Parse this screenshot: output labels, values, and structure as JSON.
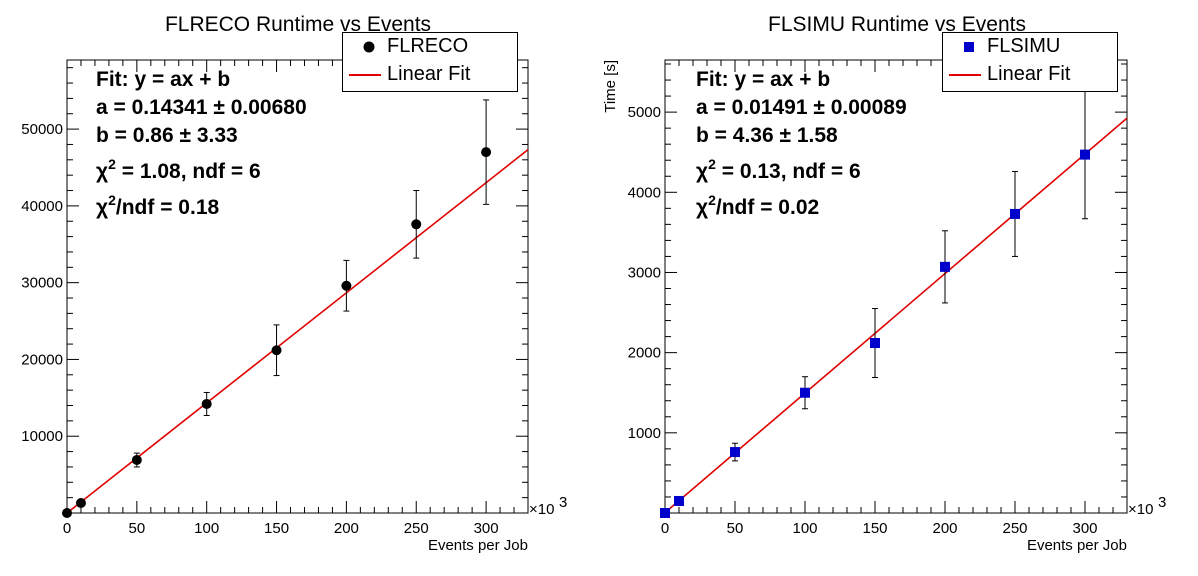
{
  "chart_data": [
    {
      "type": "scatter",
      "title": "FLRECO Runtime vs Events",
      "xlabel": "Events per Job",
      "ylabel": "",
      "x_multiplier": "×10",
      "x_multiplier_exp": "3",
      "xlim": [
        0,
        330000
      ],
      "ylim": [
        0,
        59000
      ],
      "xticks": [
        0,
        50000,
        100000,
        150000,
        200000,
        250000,
        300000
      ],
      "xtick_labels": [
        "0",
        "50",
        "100",
        "150",
        "200",
        "250",
        "300"
      ],
      "yticks": [
        10000,
        20000,
        30000,
        40000,
        50000
      ],
      "ytick_labels": [
        "10000",
        "20000",
        "30000",
        "40000",
        "50000"
      ],
      "series": [
        {
          "name": "FLRECO",
          "marker": "circle",
          "color": "#000000",
          "x": [
            0,
            10000,
            50000,
            100000,
            150000,
            200000,
            250000,
            300000
          ],
          "y": [
            0,
            1300,
            6900,
            14200,
            21200,
            29600,
            37600,
            47000
          ],
          "yerr": [
            0,
            250,
            900,
            1500,
            3300,
            3300,
            4400,
            6800
          ]
        }
      ],
      "fit": {
        "name": "Linear Fit",
        "color": "#e00000",
        "a": 0.14341,
        "b": 0.86,
        "x_range": [
          0,
          330000
        ]
      },
      "fit_text": {
        "line1": "Fit: y = ax + b",
        "a_line": "a = 0.14341 ± 0.00680",
        "b_line": "b = 0.86 ± 3.33",
        "chi2_prefix": "χ",
        "chi2_sup": "2",
        "chi2_rest": " = 1.08,  ndf = 6",
        "chi2ndf_prefix": "χ",
        "chi2ndf_sup": "2",
        "chi2ndf_rest": "/ndf = 0.18"
      },
      "legend_position": "top-right"
    },
    {
      "type": "scatter",
      "title": "FLSIMU Runtime vs Events",
      "xlabel": "Events per Job",
      "ylabel": "Time [s]",
      "x_multiplier": "×10",
      "x_multiplier_exp": "3",
      "xlim": [
        0,
        330000
      ],
      "ylim": [
        0,
        5650
      ],
      "xticks": [
        0,
        50000,
        100000,
        150000,
        200000,
        250000,
        300000
      ],
      "xtick_labels": [
        "0",
        "50",
        "100",
        "150",
        "200",
        "250",
        "300"
      ],
      "yticks": [
        1000,
        2000,
        3000,
        4000,
        5000
      ],
      "ytick_labels": [
        "1000",
        "2000",
        "3000",
        "4000",
        "5000"
      ],
      "series": [
        {
          "name": "FLSIMU",
          "marker": "square",
          "color": "#0000cc",
          "x": [
            0,
            10000,
            50000,
            100000,
            150000,
            200000,
            250000,
            300000
          ],
          "y": [
            0,
            150,
            760,
            1500,
            2120,
            3070,
            3730,
            4470
          ],
          "yerr": [
            0,
            30,
            110,
            200,
            430,
            450,
            530,
            800
          ]
        }
      ],
      "fit": {
        "name": "Linear Fit",
        "color": "#e00000",
        "a": 0.01491,
        "b": 4.36,
        "x_range": [
          0,
          330000
        ]
      },
      "fit_text": {
        "line1": "Fit: y = ax + b",
        "a_line": "a = 0.01491 ± 0.00089",
        "b_line": "b = 4.36 ± 1.58",
        "chi2_prefix": "χ",
        "chi2_sup": "2",
        "chi2_rest": " = 0.13,  ndf = 6",
        "chi2ndf_prefix": "χ",
        "chi2ndf_sup": "2",
        "chi2ndf_rest": "/ndf = 0.02"
      },
      "legend_position": "top-right"
    }
  ]
}
